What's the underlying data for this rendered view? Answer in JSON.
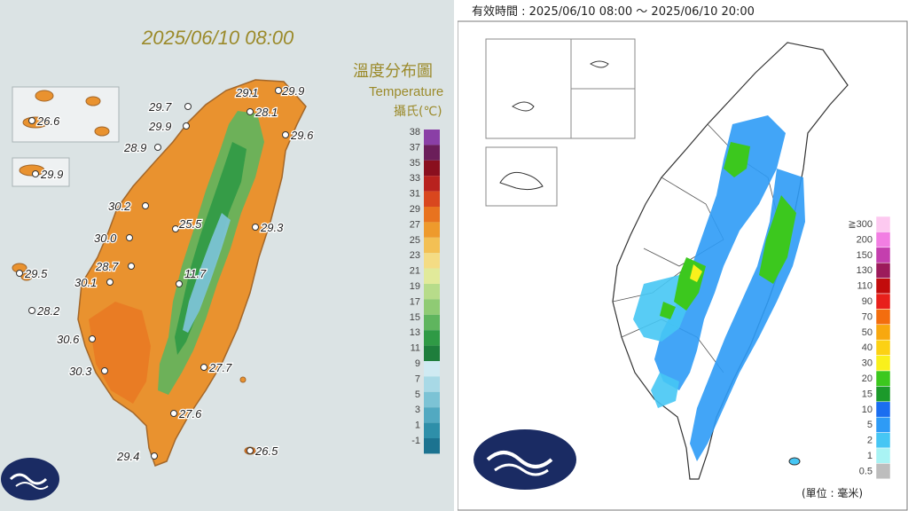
{
  "left_map": {
    "date": "2025/06/10 08:00",
    "title_zh": "溫度分布圖",
    "title_en": "Temperature",
    "unit": "攝氏(℃)",
    "legend": {
      "labels": [
        "38",
        "37",
        "35",
        "33",
        "31",
        "29",
        "27",
        "25",
        "23",
        "21",
        "19",
        "17",
        "15",
        "13",
        "11",
        "9",
        "7",
        "5",
        "3",
        "1",
        "-1"
      ],
      "colors": [
        "#8a3fa6",
        "#6b1e5a",
        "#8a0f1e",
        "#b8221e",
        "#d9471e",
        "#e8731f",
        "#ee9a2c",
        "#f3c054",
        "#f4dc84",
        "#e1ea9a",
        "#b7dc8a",
        "#8fcb74",
        "#5fb55e",
        "#2f9a45",
        "#1e7e3c",
        "#cfeaf2",
        "#a8d9e6",
        "#7cc3d5",
        "#52a9c1",
        "#2e8fa9",
        "#1c7390"
      ]
    },
    "stations": [
      {
        "value": "26.6"
      },
      {
        "value": "29.9"
      },
      {
        "value": "29.5"
      },
      {
        "value": "28.2"
      },
      {
        "value": "29.7"
      },
      {
        "value": "29.1"
      },
      {
        "value": "29.9"
      },
      {
        "value": "28.1"
      },
      {
        "value": "29.9"
      },
      {
        "value": "28.9"
      },
      {
        "value": "29.6"
      },
      {
        "value": "30.2"
      },
      {
        "value": "25.5"
      },
      {
        "value": "29.3"
      },
      {
        "value": "30.0"
      },
      {
        "value": "28.7"
      },
      {
        "value": "30.1"
      },
      {
        "value": "11.7"
      },
      {
        "value": "30.6"
      },
      {
        "value": "30.3"
      },
      {
        "value": "27.7"
      },
      {
        "value": "27.6"
      },
      {
        "value": "29.4"
      },
      {
        "value": "26.5"
      }
    ]
  },
  "right_map": {
    "valid_time": "有效時間 : 2025/06/10 08:00 ～ 2025/06/10 20:00",
    "unit": "(單位 : 毫米)",
    "legend": {
      "labels": [
        "≧300",
        "200",
        "150",
        "130",
        "110",
        "90",
        "70",
        "50",
        "40",
        "30",
        "20",
        "15",
        "10",
        "5",
        "2",
        "1",
        "0.5"
      ],
      "colors": [
        "#fdc9f0",
        "#f27ee3",
        "#c43fae",
        "#9c1b5b",
        "#c20c0c",
        "#e8201b",
        "#f36d0e",
        "#f8a80f",
        "#fcd114",
        "#f9f01c",
        "#3cc81e",
        "#1c9a2b",
        "#1b6ef0",
        "#2e9bf6",
        "#46c6f4",
        "#a9f3f4",
        "#bdbdbd"
      ]
    }
  },
  "colors": {
    "land_orange": "#e9922f",
    "land_mountain_green": "#5fb55e",
    "land_peak_blue": "#7cc3d5",
    "background_left": "#dbe3e4",
    "rain_blue": "#2e9bf6",
    "rain_green": "#3cc81e",
    "rain_yellow": "#f9f01c",
    "logo_navy": "#1a2b63"
  },
  "icons": {
    "left_logo": "cwa-logo-icon",
    "right_logo": "cwa-logo-icon"
  }
}
